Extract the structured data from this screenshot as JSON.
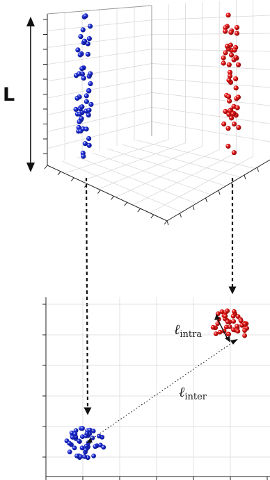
{
  "labels": {
    "length_axis": "L",
    "intra": {
      "symbol": "ℓ",
      "subscript": "intra"
    },
    "inter": {
      "symbol": "ℓ",
      "subscript": "inter"
    }
  },
  "colors": {
    "cluster_a": "#2233dd",
    "cluster_b": "#ee1a1a",
    "highlight": "#ffffff"
  },
  "clusters": {
    "a_count_3d": 52,
    "b_count_3d": 50,
    "a_count_2d": 46,
    "b_count_2d": 42
  }
}
